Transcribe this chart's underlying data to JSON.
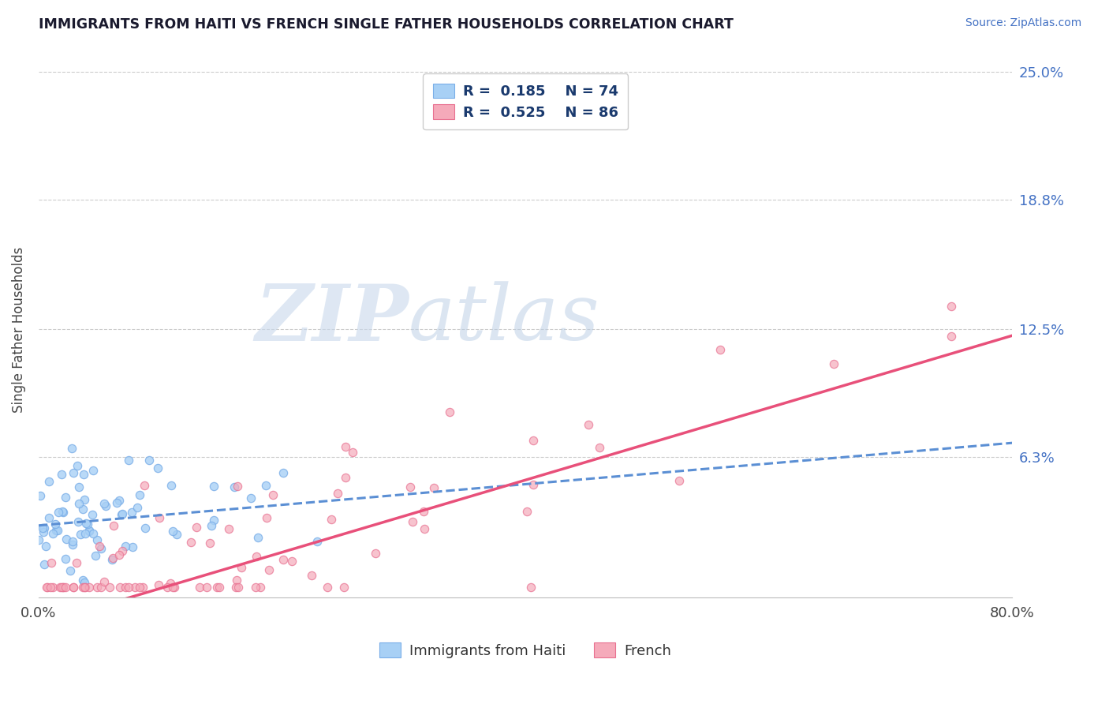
{
  "title": "IMMIGRANTS FROM HAITI VS FRENCH SINGLE FATHER HOUSEHOLDS CORRELATION CHART",
  "source": "Source: ZipAtlas.com",
  "ylabel": "Single Father Households",
  "x_min": 0.0,
  "x_max": 0.8,
  "y_min": 0.0,
  "y_max": 0.25,
  "x_tick_labels": [
    "0.0%",
    "80.0%"
  ],
  "y_tick_labels": [
    "25.0%",
    "18.8%",
    "12.5%",
    "6.3%"
  ],
  "y_tick_values": [
    0.25,
    0.188,
    0.125,
    0.063
  ],
  "color_haiti": "#A8D0F5",
  "color_haiti_edge": "#7AAEE8",
  "color_haiti_line": "#5B8FD4",
  "color_french": "#F5AABA",
  "color_french_edge": "#E87090",
  "color_french_line": "#E8507A",
  "haiti_intercept": 0.03,
  "haiti_slope": 0.05,
  "french_intercept": -0.018,
  "french_slope": 0.175,
  "R_haiti": 0.185,
  "N_haiti": 74,
  "R_french": 0.525,
  "N_french": 86,
  "watermark_ZIP": "ZIP",
  "watermark_atlas": "atlas"
}
